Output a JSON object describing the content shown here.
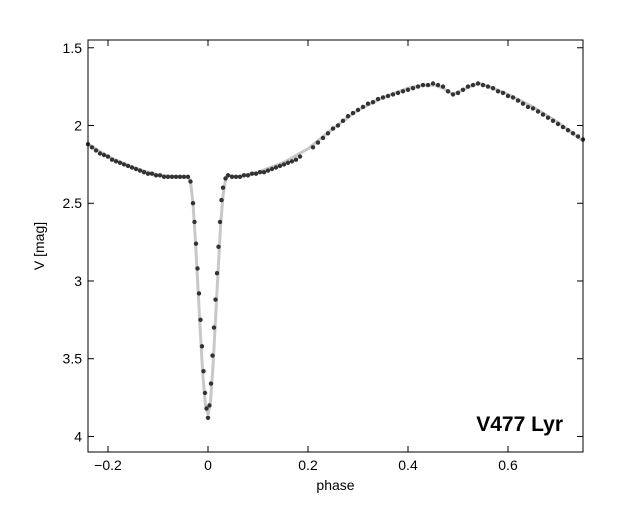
{
  "chart_data": {
    "type": "scatter",
    "title": "",
    "xlabel": "phase",
    "ylabel": "V  [mag]",
    "annotation": "V477 Lyr",
    "xlim": [
      -0.24,
      0.75
    ],
    "ylim": [
      1.45,
      4.1
    ],
    "y_inverted": true,
    "grid": false,
    "x_ticks": [
      -0.2,
      0,
      0.2,
      0.4,
      0.6
    ],
    "x_tick_labels": [
      "−0.2",
      "0",
      "0.2",
      "0.4",
      "0.6"
    ],
    "y_ticks": [
      1.5,
      2,
      2.5,
      3,
      3.5,
      4
    ],
    "y_tick_labels": [
      "1.5",
      "2",
      "2.5",
      "3",
      "3.5",
      "4"
    ],
    "colors": {
      "points": "#333333",
      "model": "#c8c8c8",
      "axes": "#000000"
    },
    "model_curve": {
      "x": [
        -0.24,
        -0.2,
        -0.15,
        -0.1,
        -0.06,
        -0.04,
        -0.035,
        -0.03,
        -0.025,
        -0.02,
        -0.015,
        -0.01,
        -0.005,
        0,
        0.005,
        0.01,
        0.015,
        0.02,
        0.025,
        0.03,
        0.035,
        0.04,
        0.06,
        0.1,
        0.15,
        0.2,
        0.25,
        0.3,
        0.35,
        0.4,
        0.43,
        0.455,
        0.47,
        0.49,
        0.51,
        0.53,
        0.545,
        0.57,
        0.6,
        0.65,
        0.7,
        0.75
      ],
      "y": [
        2.12,
        2.2,
        2.27,
        2.32,
        2.33,
        2.33,
        2.36,
        2.5,
        2.75,
        3.05,
        3.35,
        3.62,
        3.8,
        3.86,
        3.78,
        3.55,
        3.25,
        2.95,
        2.65,
        2.45,
        2.35,
        2.32,
        2.33,
        2.3,
        2.24,
        2.15,
        2.02,
        1.9,
        1.82,
        1.76,
        1.74,
        1.74,
        1.76,
        1.8,
        1.77,
        1.74,
        1.73,
        1.76,
        1.8,
        1.88,
        1.98,
        2.1
      ]
    },
    "series": [
      {
        "x": [
          -0.24,
          -0.232,
          -0.224,
          -0.216,
          -0.208,
          -0.2,
          -0.192,
          -0.184,
          -0.176,
          -0.168,
          -0.16,
          -0.152,
          -0.144,
          -0.136,
          -0.128,
          -0.12,
          -0.112,
          -0.104,
          -0.096,
          -0.088,
          -0.08,
          -0.072,
          -0.064,
          -0.056,
          -0.048,
          -0.04,
          -0.035,
          -0.03,
          -0.027,
          -0.024,
          -0.021,
          -0.018,
          -0.015,
          -0.012,
          -0.009,
          -0.006,
          -0.003,
          0,
          0.003,
          0.006,
          0.009,
          0.012,
          0.015,
          0.018,
          0.021,
          0.024,
          0.027,
          0.03,
          0.035,
          0.04,
          0.048,
          0.056,
          0.064,
          0.072,
          0.08,
          0.088,
          0.096,
          0.104,
          0.112,
          0.12,
          0.128,
          0.136,
          0.144,
          0.152,
          0.16,
          0.168,
          0.176,
          0.184,
          0.21,
          0.22,
          0.23,
          0.24,
          0.25,
          0.26,
          0.27,
          0.28,
          0.29,
          0.3,
          0.31,
          0.32,
          0.33,
          0.34,
          0.35,
          0.36,
          0.37,
          0.38,
          0.39,
          0.4,
          0.41,
          0.42,
          0.43,
          0.44,
          0.45,
          0.46,
          0.47,
          0.48,
          0.49,
          0.5,
          0.51,
          0.52,
          0.53,
          0.54,
          0.55,
          0.56,
          0.57,
          0.58,
          0.59,
          0.6,
          0.61,
          0.62,
          0.63,
          0.64,
          0.65,
          0.66,
          0.67,
          0.68,
          0.69,
          0.7,
          0.71,
          0.72,
          0.73,
          0.74,
          0.75
        ],
        "y": [
          2.12,
          2.14,
          2.16,
          2.18,
          2.19,
          2.2,
          2.22,
          2.23,
          2.24,
          2.25,
          2.26,
          2.27,
          2.28,
          2.29,
          2.3,
          2.31,
          2.31,
          2.32,
          2.32,
          2.33,
          2.33,
          2.33,
          2.33,
          2.33,
          2.33,
          2.33,
          2.36,
          2.5,
          2.62,
          2.76,
          2.92,
          3.08,
          3.25,
          3.42,
          3.58,
          3.72,
          3.82,
          3.88,
          3.8,
          3.66,
          3.48,
          3.3,
          3.12,
          2.95,
          2.78,
          2.62,
          2.48,
          2.4,
          2.34,
          2.32,
          2.33,
          2.33,
          2.33,
          2.32,
          2.32,
          2.31,
          2.31,
          2.3,
          2.3,
          2.29,
          2.28,
          2.27,
          2.26,
          2.25,
          2.24,
          2.23,
          2.22,
          2.2,
          2.14,
          2.11,
          2.08,
          2.05,
          2.02,
          2.0,
          1.97,
          1.94,
          1.92,
          1.9,
          1.88,
          1.86,
          1.85,
          1.83,
          1.82,
          1.81,
          1.8,
          1.79,
          1.78,
          1.77,
          1.76,
          1.75,
          1.74,
          1.74,
          1.73,
          1.74,
          1.75,
          1.78,
          1.8,
          1.79,
          1.77,
          1.75,
          1.74,
          1.73,
          1.74,
          1.75,
          1.76,
          1.78,
          1.79,
          1.81,
          1.82,
          1.84,
          1.86,
          1.88,
          1.89,
          1.91,
          1.93,
          1.95,
          1.97,
          1.99,
          2.01,
          2.03,
          2.05,
          2.07,
          2.09
        ]
      }
    ]
  }
}
